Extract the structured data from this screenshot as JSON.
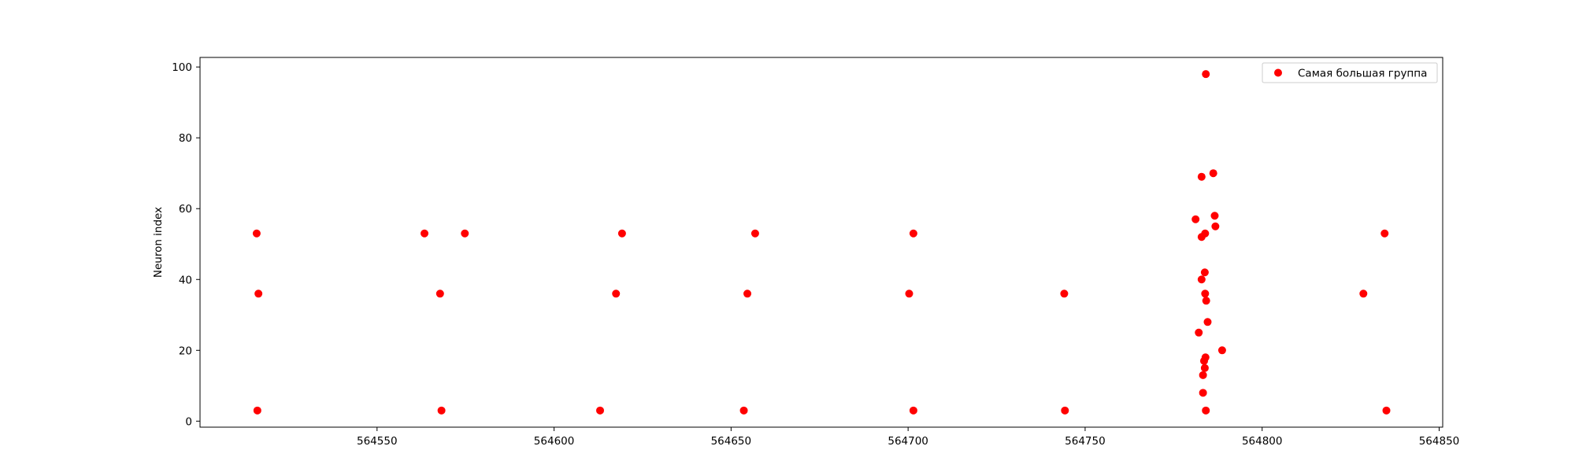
{
  "chart_data": {
    "type": "scatter",
    "title": "",
    "xlabel": "",
    "ylabel": "Neuron index",
    "xlim": [
      564500,
      564851
    ],
    "ylim": [
      -1.7,
      102.7
    ],
    "xticks": [
      564550,
      564600,
      564650,
      564700,
      564750,
      564800,
      564850
    ],
    "yticks": [
      0,
      20,
      40,
      60,
      80,
      100
    ],
    "grid": false,
    "legend": {
      "position": "top-right",
      "entries": [
        "Самая большая группа"
      ]
    },
    "series": [
      {
        "name": "Самая большая группа",
        "color": "#ff0000",
        "points": [
          {
            "x": 564516.0,
            "y": 53
          },
          {
            "x": 564516.5,
            "y": 36
          },
          {
            "x": 564516.2,
            "y": 3
          },
          {
            "x": 564563.4,
            "y": 53
          },
          {
            "x": 564567.8,
            "y": 36
          },
          {
            "x": 564568.2,
            "y": 3
          },
          {
            "x": 564574.8,
            "y": 53
          },
          {
            "x": 564613.0,
            "y": 3
          },
          {
            "x": 564617.5,
            "y": 36
          },
          {
            "x": 564619.2,
            "y": 53
          },
          {
            "x": 564653.6,
            "y": 3
          },
          {
            "x": 564654.6,
            "y": 36
          },
          {
            "x": 564656.8,
            "y": 53
          },
          {
            "x": 564700.3,
            "y": 36
          },
          {
            "x": 564701.5,
            "y": 53
          },
          {
            "x": 564701.5,
            "y": 3
          },
          {
            "x": 564744.1,
            "y": 36
          },
          {
            "x": 564744.3,
            "y": 3
          },
          {
            "x": 564781.2,
            "y": 57
          },
          {
            "x": 564782.1,
            "y": 25
          },
          {
            "x": 564782.9,
            "y": 69
          },
          {
            "x": 564782.9,
            "y": 52
          },
          {
            "x": 564782.9,
            "y": 40
          },
          {
            "x": 564783.3,
            "y": 8
          },
          {
            "x": 564783.3,
            "y": 13
          },
          {
            "x": 564783.6,
            "y": 17
          },
          {
            "x": 564783.8,
            "y": 15
          },
          {
            "x": 564783.8,
            "y": 42
          },
          {
            "x": 564783.9,
            "y": 53
          },
          {
            "x": 564783.9,
            "y": 36
          },
          {
            "x": 564784.0,
            "y": 18
          },
          {
            "x": 564784.1,
            "y": 98
          },
          {
            "x": 564784.1,
            "y": 3
          },
          {
            "x": 564784.2,
            "y": 34
          },
          {
            "x": 564784.6,
            "y": 28
          },
          {
            "x": 564786.2,
            "y": 70
          },
          {
            "x": 564786.6,
            "y": 58
          },
          {
            "x": 564786.8,
            "y": 55
          },
          {
            "x": 564788.7,
            "y": 20
          },
          {
            "x": 564828.6,
            "y": 36
          },
          {
            "x": 564834.6,
            "y": 53
          },
          {
            "x": 564835.1,
            "y": 3
          }
        ]
      }
    ]
  }
}
